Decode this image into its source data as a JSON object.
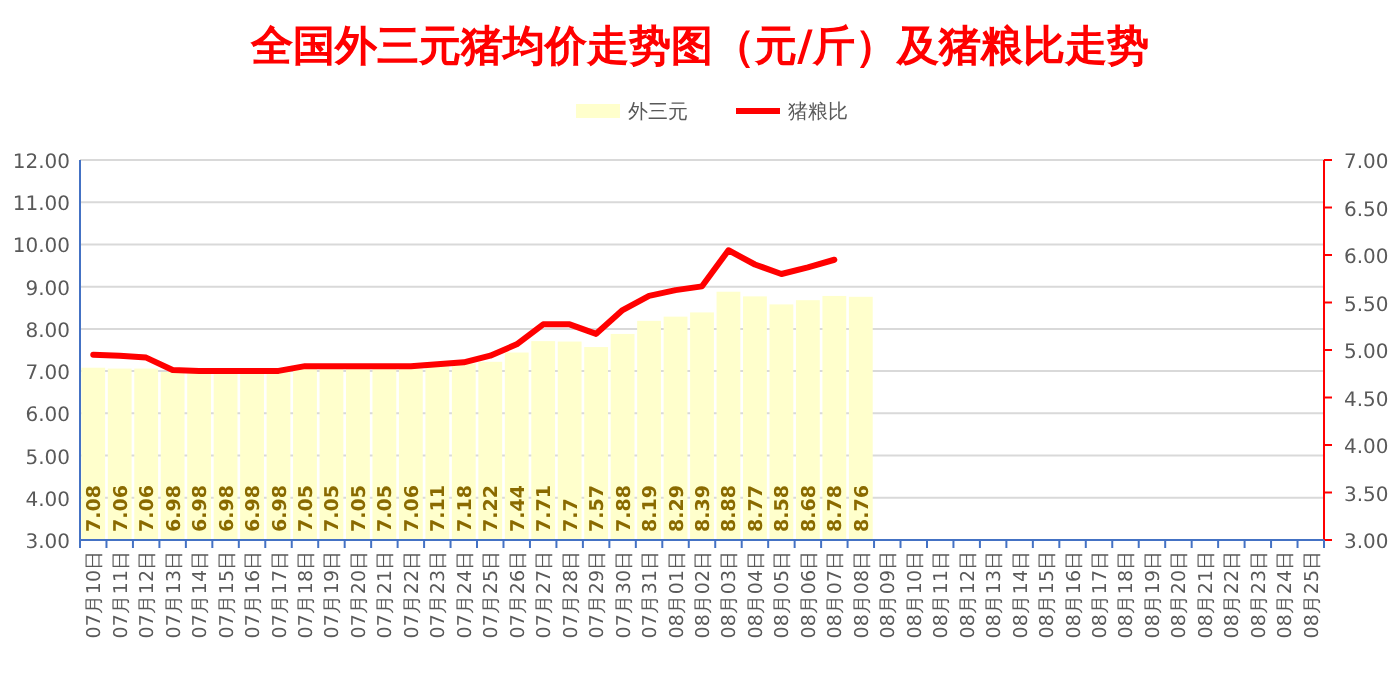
{
  "chart_data": {
    "type": "bar",
    "title": "全国外三元猪均价走势图（元/斤）及猪粮比走势",
    "categories": [
      "07月10日",
      "07月11日",
      "07月12日",
      "07月13日",
      "07月14日",
      "07月15日",
      "07月16日",
      "07月17日",
      "07月18日",
      "07月19日",
      "07月20日",
      "07月21日",
      "07月22日",
      "07月23日",
      "07月24日",
      "07月25日",
      "07月26日",
      "07月27日",
      "07月28日",
      "07月29日",
      "07月30日",
      "07月31日",
      "08月01日",
      "08月02日",
      "08月03日",
      "08月04日",
      "08月05日",
      "08月06日",
      "08月07日",
      "08月08日",
      "08月09日",
      "08月10日",
      "08月11日",
      "08月12日",
      "08月13日",
      "08月14日",
      "08月15日",
      "08月16日",
      "08月17日",
      "08月18日",
      "08月19日",
      "08月20日",
      "08月21日",
      "08月22日",
      "08月23日",
      "08月24日",
      "08月25日"
    ],
    "series": [
      {
        "name": "外三元",
        "color": "#ffffcc",
        "values": [
          7.08,
          7.06,
          7.06,
          6.98,
          6.98,
          6.98,
          6.98,
          6.98,
          7.05,
          7.05,
          7.05,
          7.05,
          7.06,
          7.11,
          7.18,
          7.22,
          7.44,
          7.71,
          7.7,
          7.57,
          7.88,
          8.19,
          8.29,
          8.39,
          8.88,
          8.77,
          8.58,
          8.68,
          8.78,
          8.76,
          null,
          null,
          null,
          null,
          null,
          null,
          null,
          null,
          null,
          null,
          null,
          null,
          null,
          null,
          null,
          null,
          null
        ],
        "value_labels": [
          "7.08",
          "7.06",
          "7.06",
          "6.98",
          "6.98",
          "6.98",
          "6.98",
          "6.98",
          "7.05",
          "7.05",
          "7.05",
          "7.05",
          "7.06",
          "7.11",
          "7.18",
          "7.22",
          "7.44",
          "7.71",
          "7.7",
          "7.57",
          "7.88",
          "8.19",
          "8.29",
          "8.39",
          "8.88",
          "8.77",
          "8.58",
          "8.68",
          "8.78",
          "8.76",
          null,
          null,
          null,
          null,
          null,
          null,
          null,
          null,
          null,
          null,
          null,
          null,
          null,
          null,
          null,
          null,
          null
        ]
      },
      {
        "name": "猪粮比",
        "type": "line",
        "axis": "y2",
        "color": "#ff0000",
        "values": [
          4.95,
          4.94,
          4.92,
          4.79,
          4.78,
          4.78,
          4.78,
          4.78,
          4.83,
          4.83,
          4.83,
          4.83,
          4.83,
          4.85,
          4.87,
          4.94,
          5.06,
          5.27,
          5.27,
          5.17,
          5.42,
          5.57,
          5.63,
          5.67,
          6.05,
          5.9,
          5.8,
          5.87,
          5.95,
          null,
          null,
          null,
          null,
          null,
          null,
          null,
          null,
          null,
          null,
          null,
          null,
          null,
          null,
          null,
          null,
          null,
          null
        ]
      }
    ],
    "ylim": [
      3,
      12
    ],
    "yticks": [
      {
        "value": 3,
        "label": "3.00"
      },
      {
        "value": 4,
        "label": "4.00"
      },
      {
        "value": 5,
        "label": "5.00"
      },
      {
        "value": 6,
        "label": "6.00"
      },
      {
        "value": 7,
        "label": "7.00"
      },
      {
        "value": 8,
        "label": "8.00"
      },
      {
        "value": 9,
        "label": "9.00"
      },
      {
        "value": 10,
        "label": "10.00"
      },
      {
        "value": 11,
        "label": "11.00"
      },
      {
        "value": 12,
        "label": "12.00"
      }
    ],
    "y2lim": [
      3,
      7
    ],
    "y2ticks": [
      {
        "value": 3,
        "label": "3.00"
      },
      {
        "value": 3.5,
        "label": "3.50"
      },
      {
        "value": 4,
        "label": "4.00"
      },
      {
        "value": 4.5,
        "label": "4.50"
      },
      {
        "value": 5,
        "label": "5.00"
      },
      {
        "value": 5.5,
        "label": "5.50"
      },
      {
        "value": 6,
        "label": "6.00"
      },
      {
        "value": 6.5,
        "label": "6.50"
      },
      {
        "value": 7,
        "label": "7.00"
      }
    ],
    "grid": "y",
    "legend": "top",
    "marker": "none"
  }
}
